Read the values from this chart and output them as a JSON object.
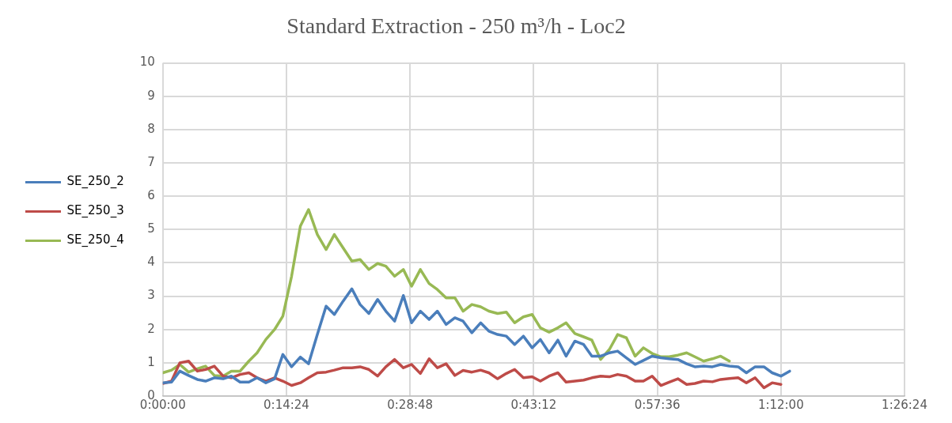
{
  "chart_data": {
    "type": "line",
    "title": "Standard Extraction - 250 m³/h - Loc2",
    "xlim": [
      0,
      1.44
    ],
    "xticks": [
      {
        "value": 0,
        "label": "0:00:00"
      },
      {
        "value": 0.24,
        "label": "0:14:24"
      },
      {
        "value": 0.48,
        "label": "0:28:48"
      },
      {
        "value": 0.72,
        "label": "0:43:12"
      },
      {
        "value": 0.96,
        "label": "0:57:36"
      },
      {
        "value": 1.2,
        "label": "1:12:00"
      },
      {
        "value": 1.44,
        "label": "1:26:24"
      }
    ],
    "ylim": [
      0,
      10
    ],
    "yticks": [
      0,
      1,
      2,
      3,
      4,
      5,
      6,
      7,
      8,
      9,
      10
    ],
    "grid": true,
    "legend": "left",
    "marker": "none",
    "line_style": "solid",
    "series": [
      {
        "name": "SE_250_2",
        "color": "#4a7ebb",
        "x": [
          0,
          0.017,
          0.033,
          0.05,
          0.067,
          0.083,
          0.1,
          0.117,
          0.133,
          0.15,
          0.167,
          0.183,
          0.2,
          0.217,
          0.233,
          0.25,
          0.267,
          0.283,
          0.3,
          0.317,
          0.333,
          0.35,
          0.367,
          0.383,
          0.4,
          0.417,
          0.433,
          0.45,
          0.467,
          0.483,
          0.5,
          0.517,
          0.533,
          0.55,
          0.567,
          0.583,
          0.6,
          0.617,
          0.633,
          0.65,
          0.667,
          0.683,
          0.7,
          0.717,
          0.733,
          0.75,
          0.767,
          0.783,
          0.8,
          0.817,
          0.833,
          0.85,
          0.867,
          0.883,
          0.9,
          0.917,
          0.933,
          0.95,
          0.967,
          0.983,
          1.0,
          1.017,
          1.033,
          1.05,
          1.067,
          1.083,
          1.1,
          1.117,
          1.133,
          1.15,
          1.167,
          1.183,
          1.2,
          1.217
        ],
        "values": [
          0.4,
          0.42,
          0.75,
          0.62,
          0.5,
          0.45,
          0.55,
          0.52,
          0.6,
          0.42,
          0.42,
          0.55,
          0.4,
          0.52,
          1.25,
          0.88,
          1.17,
          0.97,
          1.85,
          2.7,
          2.45,
          2.85,
          3.22,
          2.75,
          2.48,
          2.9,
          2.55,
          2.25,
          3.02,
          2.2,
          2.55,
          2.3,
          2.55,
          2.15,
          2.35,
          2.25,
          1.9,
          2.2,
          1.95,
          1.85,
          1.8,
          1.55,
          1.8,
          1.45,
          1.7,
          1.3,
          1.68,
          1.2,
          1.65,
          1.55,
          1.2,
          1.2,
          1.3,
          1.35,
          1.15,
          0.95,
          1.07,
          1.2,
          1.15,
          1.12,
          1.1,
          0.97,
          0.88,
          0.9,
          0.88,
          0.95,
          0.9,
          0.88,
          0.7,
          0.88,
          0.88,
          0.7,
          0.6,
          0.75
        ]
      },
      {
        "name": "SE_250_3",
        "color": "#be4b48",
        "x": [
          0,
          0.017,
          0.033,
          0.05,
          0.067,
          0.083,
          0.1,
          0.117,
          0.133,
          0.15,
          0.167,
          0.183,
          0.2,
          0.217,
          0.233,
          0.25,
          0.267,
          0.283,
          0.3,
          0.317,
          0.333,
          0.35,
          0.367,
          0.383,
          0.4,
          0.417,
          0.433,
          0.45,
          0.467,
          0.483,
          0.5,
          0.517,
          0.533,
          0.55,
          0.567,
          0.583,
          0.6,
          0.617,
          0.633,
          0.65,
          0.667,
          0.683,
          0.7,
          0.717,
          0.733,
          0.75,
          0.767,
          0.783,
          0.8,
          0.817,
          0.833,
          0.85,
          0.867,
          0.883,
          0.9,
          0.917,
          0.933,
          0.95,
          0.967,
          0.983,
          1.0,
          1.017,
          1.033,
          1.05,
          1.067,
          1.083,
          1.1,
          1.117,
          1.133,
          1.15,
          1.167,
          1.183,
          1.2
        ],
        "values": [
          0.38,
          0.45,
          1.0,
          1.05,
          0.75,
          0.8,
          0.9,
          0.6,
          0.55,
          0.65,
          0.7,
          0.55,
          0.45,
          0.55,
          0.45,
          0.32,
          0.4,
          0.55,
          0.7,
          0.72,
          0.78,
          0.85,
          0.85,
          0.88,
          0.8,
          0.6,
          0.88,
          1.1,
          0.85,
          0.95,
          0.68,
          1.12,
          0.85,
          0.97,
          0.62,
          0.77,
          0.72,
          0.78,
          0.7,
          0.52,
          0.68,
          0.8,
          0.55,
          0.58,
          0.45,
          0.6,
          0.7,
          0.42,
          0.45,
          0.48,
          0.55,
          0.6,
          0.58,
          0.65,
          0.6,
          0.45,
          0.45,
          0.6,
          0.32,
          0.42,
          0.52,
          0.35,
          0.38,
          0.45,
          0.43,
          0.5,
          0.53,
          0.55,
          0.4,
          0.55,
          0.25,
          0.4,
          0.35
        ]
      },
      {
        "name": "SE_250_4",
        "color": "#98b954",
        "x": [
          0,
          0.017,
          0.033,
          0.05,
          0.067,
          0.083,
          0.1,
          0.117,
          0.133,
          0.15,
          0.167,
          0.183,
          0.2,
          0.217,
          0.233,
          0.25,
          0.267,
          0.283,
          0.3,
          0.317,
          0.333,
          0.35,
          0.367,
          0.383,
          0.4,
          0.417,
          0.433,
          0.45,
          0.467,
          0.483,
          0.5,
          0.517,
          0.533,
          0.55,
          0.567,
          0.583,
          0.6,
          0.617,
          0.633,
          0.65,
          0.667,
          0.683,
          0.7,
          0.717,
          0.733,
          0.75,
          0.767,
          0.783,
          0.8,
          0.817,
          0.833,
          0.85,
          0.867,
          0.883,
          0.9,
          0.917,
          0.933,
          0.95,
          0.967,
          0.983,
          1.0,
          1.017,
          1.033,
          1.05,
          1.067,
          1.083,
          1.1
        ],
        "values": [
          0.7,
          0.78,
          0.95,
          0.72,
          0.82,
          0.9,
          0.62,
          0.6,
          0.75,
          0.75,
          1.05,
          1.3,
          1.7,
          2.0,
          2.4,
          3.6,
          5.1,
          5.6,
          4.85,
          4.4,
          4.85,
          4.45,
          4.05,
          4.1,
          3.8,
          3.98,
          3.9,
          3.6,
          3.8,
          3.3,
          3.8,
          3.38,
          3.2,
          2.95,
          2.95,
          2.55,
          2.75,
          2.68,
          2.55,
          2.48,
          2.52,
          2.2,
          2.38,
          2.45,
          2.05,
          1.92,
          2.05,
          2.2,
          1.88,
          1.78,
          1.68,
          1.1,
          1.4,
          1.85,
          1.75,
          1.2,
          1.45,
          1.28,
          1.18,
          1.18,
          1.23,
          1.3,
          1.18,
          1.05,
          1.12,
          1.2,
          1.05
        ]
      }
    ]
  }
}
